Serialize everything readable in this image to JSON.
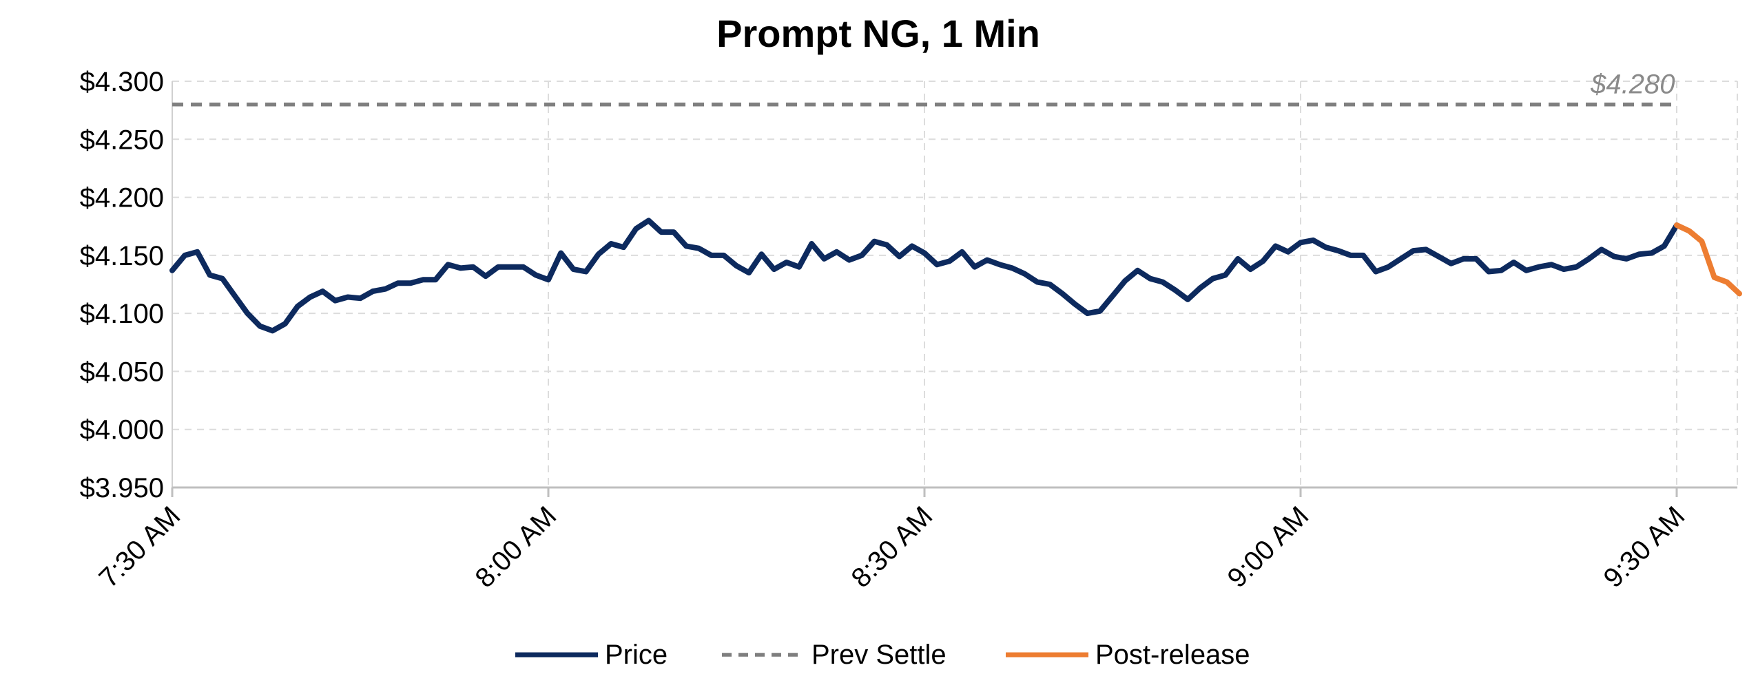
{
  "chart_data": {
    "type": "line",
    "title": "Prompt NG, 1 Min",
    "xlabel": "",
    "ylabel": "",
    "x_range_minutes": [
      0,
      125
    ],
    "x_ticks": [
      {
        "minute": 0,
        "label": "7:30 AM"
      },
      {
        "minute": 30,
        "label": "8:00 AM"
      },
      {
        "minute": 60,
        "label": "8:30 AM"
      },
      {
        "minute": 90,
        "label": "9:00 AM"
      },
      {
        "minute": 120,
        "label": "9:30 AM"
      }
    ],
    "ylim": [
      3.95,
      4.3
    ],
    "y_ticks": [
      3.95,
      4.0,
      4.05,
      4.1,
      4.15,
      4.2,
      4.25,
      4.3
    ],
    "y_tick_labels": [
      "$3.950",
      "$4.000",
      "$4.050",
      "$4.100",
      "$4.150",
      "$4.200",
      "$4.250",
      "$4.300"
    ],
    "grid": true,
    "legend": "bottom",
    "series": [
      {
        "name": "Price",
        "color": "#0d2a5e",
        "style": "solid",
        "values": [
          4.137,
          4.15,
          4.153,
          4.133,
          4.13,
          4.115,
          4.1,
          4.089,
          4.085,
          4.091,
          4.106,
          4.114,
          4.119,
          4.111,
          4.114,
          4.113,
          4.119,
          4.121,
          4.126,
          4.126,
          4.129,
          4.129,
          4.142,
          4.139,
          4.14,
          4.132,
          4.14,
          4.14,
          4.14,
          4.133,
          4.129,
          4.152,
          4.138,
          4.136,
          4.151,
          4.16,
          4.157,
          4.173,
          4.18,
          4.17,
          4.17,
          4.158,
          4.156,
          4.15,
          4.15,
          4.141,
          4.135,
          4.151,
          4.138,
          4.144,
          4.14,
          4.16,
          4.147,
          4.153,
          4.146,
          4.15,
          4.162,
          4.159,
          4.149,
          4.158,
          4.152,
          4.142,
          4.145,
          4.153,
          4.14,
          4.146,
          4.142,
          4.139,
          4.134,
          4.127,
          4.125,
          4.117,
          4.108,
          4.1,
          4.102,
          4.115,
          4.128,
          4.137,
          4.13,
          4.127,
          4.12,
          4.112,
          4.122,
          4.13,
          4.133,
          4.147,
          4.138,
          4.145,
          4.158,
          4.153,
          4.161,
          4.163,
          4.157,
          4.154,
          4.15,
          4.15,
          4.136,
          4.14,
          4.147,
          4.154,
          4.155,
          4.149,
          4.143,
          4.147,
          4.147,
          4.136,
          4.137,
          4.144,
          4.137,
          4.14,
          4.142,
          4.138,
          4.14,
          4.147,
          4.155,
          4.149,
          4.147,
          4.151,
          4.152,
          4.158,
          4.176
        ]
      },
      {
        "name": "Prev Settle",
        "color": "#7f7f7f",
        "style": "dashed",
        "value": 4.28,
        "x_span_minutes": [
          0,
          120
        ]
      },
      {
        "name": "Post-release",
        "color": "#ed7d31",
        "style": "solid",
        "start_minute": 120,
        "values": [
          4.176,
          4.171,
          4.162,
          4.131,
          4.127,
          4.117
        ]
      }
    ],
    "annotations": [
      {
        "text": "$4.280",
        "x_minute": 116.5,
        "y": 4.28
      }
    ]
  }
}
